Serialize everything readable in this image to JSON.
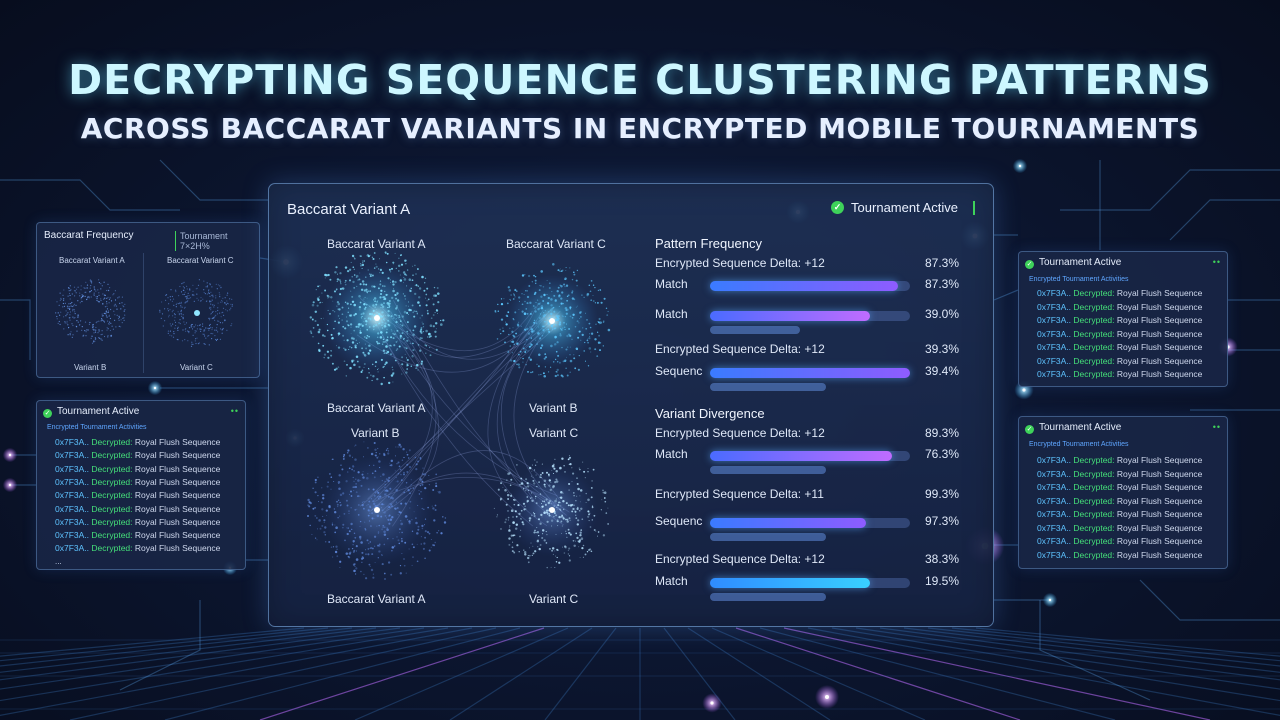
{
  "header": {
    "title": "DECRYPTING SEQUENCE CLUSTERING PATTERNS",
    "subtitle": "ACROSS BACCARAT VARIANTS IN ENCRYPTED MOBILE TOURNAMENTS"
  },
  "main_panel": {
    "title": "Baccarat Variant A",
    "status": "Tournament Active",
    "status_color": "#3ed25a",
    "cluster_labels": [
      "Baccarat Variant A",
      "Baccarat Variant C",
      "Baccarat Variant A",
      "Variant B",
      "Variant B",
      "Variant C",
      "Baccarat Variant A",
      "Variant C"
    ],
    "pattern_frequency": {
      "heading": "Pattern Frequency",
      "rows": [
        {
          "label": "Encrypted Sequence Delta: +12",
          "value": "87.3%"
        },
        {
          "label": "Match",
          "value": "87.3%",
          "fill": 0.94,
          "sub": 0.0
        },
        {
          "label": "Match",
          "value": "39.0%",
          "fill": 0.8,
          "sub": 0.45
        },
        {
          "label": "Encrypted Sequence Delta: +12",
          "value": "39.3%"
        },
        {
          "label": "Sequenc",
          "value": "39.4%",
          "fill": 1.0,
          "sub": 0.58
        }
      ]
    },
    "variant_divergence": {
      "heading": "Variant Divergence",
      "rows": [
        {
          "label": "Encrypted Sequence Delta: +12",
          "value": "89.3%"
        },
        {
          "label": "Match",
          "value": "76.3%",
          "fill": 0.91,
          "sub": 0.58
        },
        {
          "label": "Encrypted Sequence Delta: +11",
          "value": "99.3%"
        },
        {
          "label": "Sequenc",
          "value": "97.3%",
          "fill": 0.78,
          "sub": 0.58
        },
        {
          "label": "Encrypted Sequence Delta: +12",
          "value": "38.3%"
        },
        {
          "label": "Match",
          "value": "19.5%",
          "fill": 0.8,
          "sub": 0.58
        }
      ]
    }
  },
  "left_top_panel": {
    "title": "Baccarat Frequency",
    "tag": "Tournament 7×2H%",
    "variant_labels": [
      "Baccarat Variant A",
      "Baccarat Variant C",
      "Variant B",
      "Variant C"
    ]
  },
  "left_bottom_panel": {
    "title": "Tournament Active",
    "indicator": "••",
    "subheader": "Encrypted Tournament Activities",
    "log": [
      {
        "hex": "0x7F3A..",
        "status": "Decrypted:",
        "text": "Royal Flush Sequence"
      },
      {
        "hex": "0x7F3A..",
        "status": "Decrypted:",
        "text": "Royal Flush Sequence"
      },
      {
        "hex": "0x7F3A..",
        "status": "Decrypted:",
        "text": "Royal Flush Sequence"
      },
      {
        "hex": "0x7F3A..",
        "status": "Decrypted:",
        "text": "Royal Flush Sequence"
      },
      {
        "hex": "0x7F3A..",
        "status": "Decrypted:",
        "text": "Royal Flush Sequence"
      },
      {
        "hex": "0x7F3A..",
        "status": "Decrypted:",
        "text": "Royal Flush Sequence"
      },
      {
        "hex": "0x7F3A..",
        "status": "Decrypted:",
        "text": "Royal Flush Sequence"
      },
      {
        "hex": "0x7F3A..",
        "status": "Decrypted:",
        "text": "Royal Flush Sequence"
      },
      {
        "hex": "0x7F3A..",
        "status": "Decrypted:",
        "text": "Royal Flush Sequence"
      }
    ],
    "footer": "..."
  },
  "right_top_panel": {
    "title": "Tournament Active",
    "indicator": "••",
    "subheader": "Encrypted Tournament Activities",
    "log": [
      {
        "hex": "0x7F3A..",
        "status": "Decrypted:",
        "text": "Royal Flush Sequence"
      },
      {
        "hex": "0x7F3A..",
        "status": "Decrypted:",
        "text": "Royal Flush Sequence"
      },
      {
        "hex": "0x7F3A..",
        "status": "Decrypted:",
        "text": "Royal Flush Sequence"
      },
      {
        "hex": "0x7F3A..",
        "status": "Decrypted:",
        "text": "Royal Flush Sequence"
      },
      {
        "hex": "0x7F3A..",
        "status": "Decrypted:",
        "text": "Royal Flush Sequence"
      },
      {
        "hex": "0x7F3A..",
        "status": "Decrypted:",
        "text": "Royal Flush Sequence"
      },
      {
        "hex": "0x7F3A..",
        "status": "Decrypted:",
        "text": "Royal Flush Sequence"
      }
    ]
  },
  "right_bottom_panel": {
    "title": "Tournament Active",
    "indicator": "••",
    "subheader": "Encrypted Tournament Activities",
    "log": [
      {
        "hex": "0x7F3A..",
        "status": "Decrypted:",
        "text": "Royal Flush Sequence"
      },
      {
        "hex": "0x7F3A..",
        "status": "Decrypted:",
        "text": "Royal Flush Sequence"
      },
      {
        "hex": "0x7F3A..",
        "status": "Decrypted:",
        "text": "Royal Flush Sequence"
      },
      {
        "hex": "0x7F3A..",
        "status": "Decrypted:",
        "text": "Royal Flush Sequence"
      },
      {
        "hex": "0x7F3A..",
        "status": "Decrypted:",
        "text": "Royal Flush Sequence"
      },
      {
        "hex": "0x7F3A..",
        "status": "Decrypted:",
        "text": "Royal Flush Sequence"
      },
      {
        "hex": "0x7F3A..",
        "status": "Decrypted:",
        "text": "Royal Flush Sequence"
      },
      {
        "hex": "0x7F3A..",
        "status": "Decrypted:",
        "text": "Royal Flush Sequence"
      }
    ]
  },
  "colors": {
    "accent_blue": "#39b6ff",
    "accent_purple": "#a25cff",
    "success": "#3ed25a"
  }
}
